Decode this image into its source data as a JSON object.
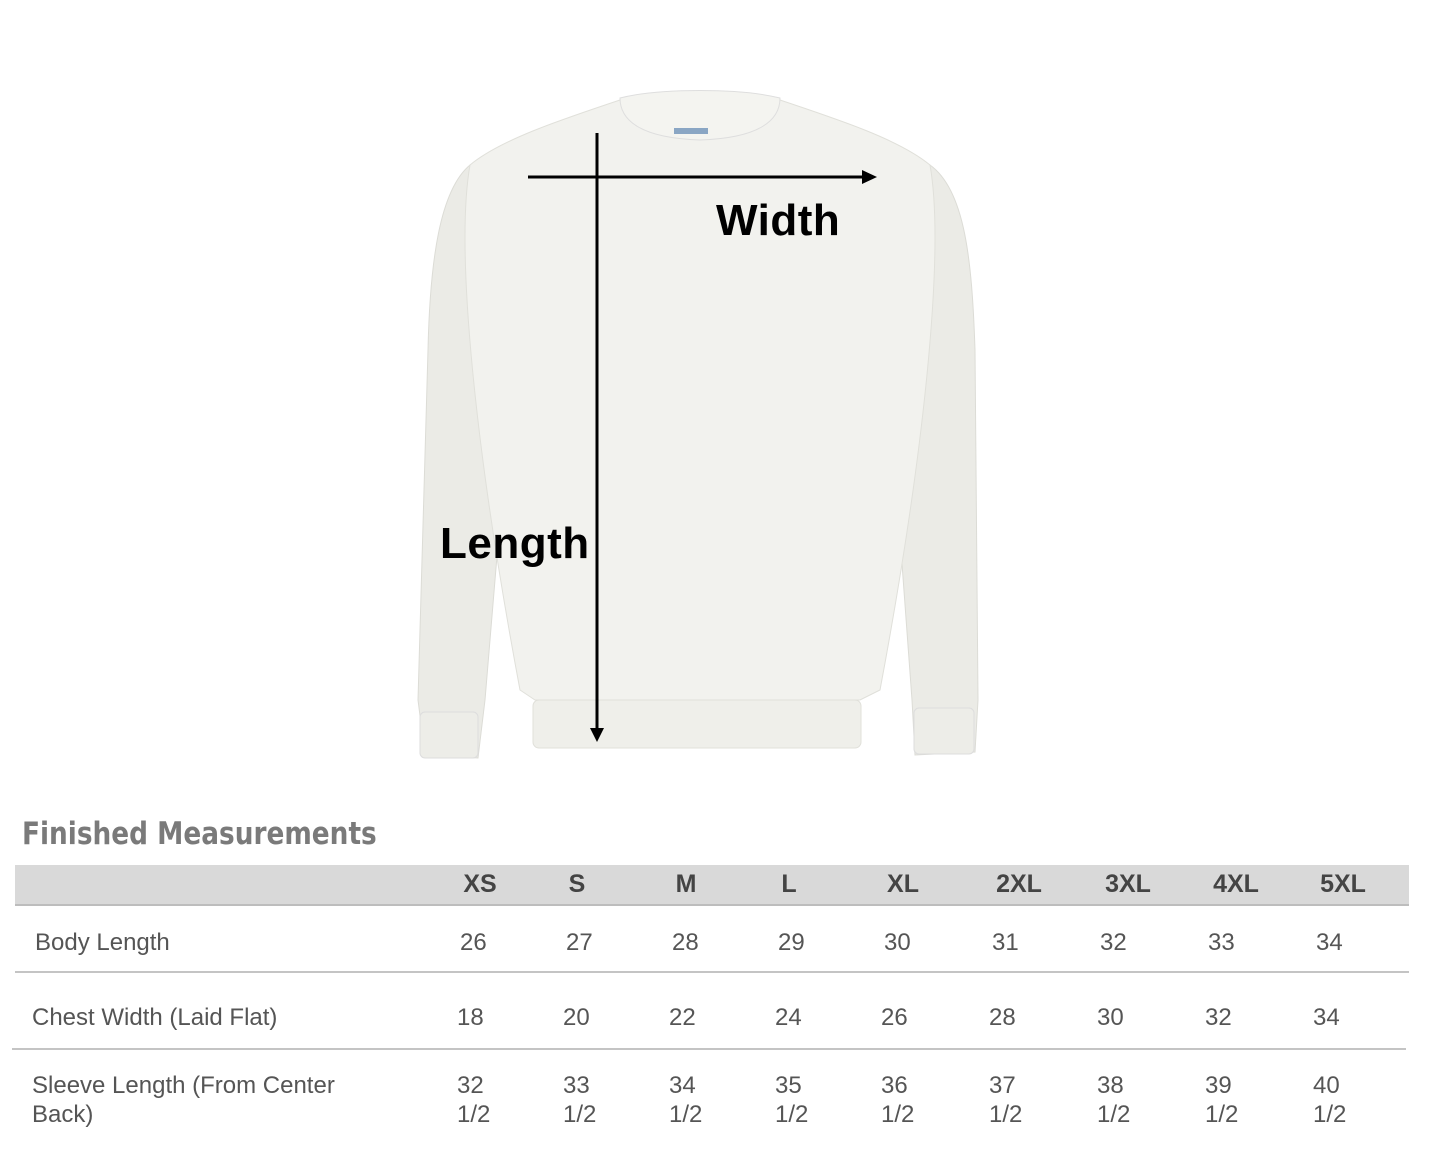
{
  "diagram": {
    "width_label": "Width",
    "length_label": "Length",
    "garment_color": "#f2f2ee"
  },
  "table": {
    "title": "Finished Measurements",
    "sizes": [
      "XS",
      "S",
      "M",
      "L",
      "XL",
      "2XL",
      "3XL",
      "4XL",
      "5XL"
    ],
    "rows": [
      {
        "label": "Body Length",
        "values": [
          "26",
          "27",
          "28",
          "29",
          "30",
          "31",
          "32",
          "33",
          "34"
        ]
      },
      {
        "label": "Chest Width (Laid Flat)",
        "values": [
          "18",
          "20",
          "22",
          "24",
          "26",
          "28",
          "30",
          "32",
          "34"
        ]
      },
      {
        "label_line1": "Sleeve Length (From Center",
        "label_line2": "Back)",
        "values_line1": [
          "32",
          "33",
          "34",
          "35",
          "36",
          "37",
          "38",
          "39",
          "40"
        ],
        "values_line2": [
          "1/2",
          "1/2",
          "1/2",
          "1/2",
          "1/2",
          "1/2",
          "1/2",
          "1/2",
          "1/2"
        ]
      }
    ],
    "header_color": "#d9d9d9"
  }
}
